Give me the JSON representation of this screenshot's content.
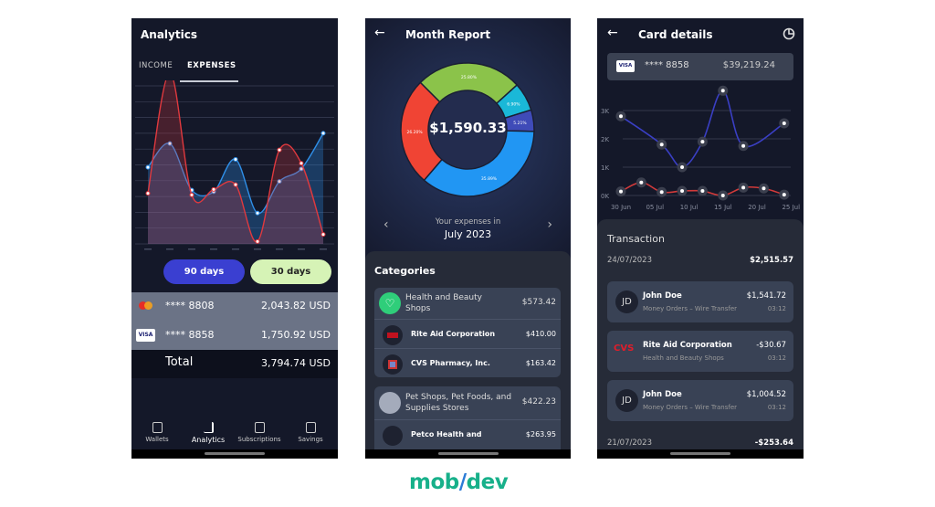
{
  "analytics": {
    "title": "Analytics",
    "tabs": [
      {
        "label": "INCOME",
        "active": false
      },
      {
        "label": "EXPENSES",
        "active": true
      }
    ],
    "chart_data": {
      "type": "area",
      "x_count": 9,
      "y_gridlines": 10,
      "grid": true,
      "series": [
        {
          "color": "#e0393e",
          "values": [
            3.2,
            10.85,
            3.1,
            3.45,
            3.75,
            0.15,
            5.95,
            5.1,
            0.6
          ]
        },
        {
          "color": "#2f8fe8",
          "values": [
            4.85,
            6.35,
            3.4,
            3.3,
            5.35,
            1.95,
            3.95,
            4.75,
            7.0
          ]
        }
      ]
    },
    "range_buttons": [
      {
        "label": "90 days",
        "color": "#3a3fd1",
        "active": true
      },
      {
        "label": "30 days",
        "color": "#d6f3b6",
        "active": false
      }
    ],
    "cards": [
      {
        "brand": "mastercard",
        "number": "**** 8808",
        "amount": "2,043.82 USD"
      },
      {
        "brand": "VISA",
        "number": "**** 8858",
        "amount": "1,750.92 USD"
      }
    ],
    "total": {
      "label": "Total",
      "amount": "3,794.74 USD"
    },
    "nav": [
      {
        "label": "Wallets",
        "icon": "wallet-icon"
      },
      {
        "label": "Analytics",
        "icon": "bar-chart-icon",
        "active": true
      },
      {
        "label": "Subscriptions",
        "icon": "calendar-icon"
      },
      {
        "label": "Savings",
        "icon": "calendar-icon"
      }
    ]
  },
  "report": {
    "title": "Month Report",
    "total": "$1,590.33",
    "chart_data": {
      "type": "pie",
      "donut": true,
      "slices": [
        {
          "label": "25.80%",
          "value": 25.8,
          "color": "#8bc34a"
        },
        {
          "label": "6.90%",
          "value": 6.9,
          "color": "#1ab8d8"
        },
        {
          "label": "5.21%",
          "value": 5.21,
          "color": "#3f4bb8"
        },
        {
          "label": "35.89%",
          "value": 35.89,
          "color": "#2196f3"
        },
        {
          "label": "26.20%",
          "value": 26.2,
          "color": "#f04434"
        }
      ]
    },
    "period_caption": "Your expenses in",
    "period": "July 2023",
    "categories_title": "Categories",
    "groups": [
      {
        "name": "Health and Beauty Shops",
        "amount": "$573.42",
        "icon": "heart-icon",
        "items": [
          {
            "name": "Rite Aid Corporation",
            "amount": "$410.00"
          },
          {
            "name": "CVS Pharmacy, Inc.",
            "amount": "$163.42"
          }
        ]
      },
      {
        "name": "Pet Shops, Pet Foods, and Supplies Stores",
        "amount": "$422.23",
        "icon": "pet-icon",
        "items": [
          {
            "name": "Petco Health and",
            "amount": "$263.95"
          }
        ]
      }
    ]
  },
  "card": {
    "title": "Card details",
    "brand": "VISA",
    "number": "**** 8858",
    "balance": "$39,219.24",
    "chart_data": {
      "type": "line",
      "ylim": [
        0,
        3.7
      ],
      "y_ticks": [
        "0K",
        "1K",
        "2K",
        "3K"
      ],
      "x_ticks": [
        "30 Jun",
        "05 Jul",
        "10 Jul",
        "15 Jul",
        "20 Jul",
        "25 Jul"
      ],
      "series": [
        {
          "color": "#3a3fc4",
          "points": [
            [
              "30 Jun",
              2.8
            ],
            [
              "06 Jul",
              1.8
            ],
            [
              "09 Jul",
              1.0
            ],
            [
              "12 Jul",
              1.9
            ],
            [
              "15 Jul",
              3.7
            ],
            [
              "18 Jul",
              1.75
            ],
            [
              "24 Jul",
              2.55
            ]
          ]
        },
        {
          "color": "#d23a3a",
          "points": [
            [
              "30 Jun",
              0.14
            ],
            [
              "03 Jul",
              0.46
            ],
            [
              "06 Jul",
              0.12
            ],
            [
              "09 Jul",
              0.16
            ],
            [
              "12 Jul",
              0.16
            ],
            [
              "15 Jul",
              0.0
            ],
            [
              "18 Jul",
              0.28
            ],
            [
              "21 Jul",
              0.25
            ],
            [
              "24 Jul",
              0.03
            ]
          ]
        }
      ]
    },
    "transactions_title": "Transaction",
    "days": [
      {
        "date": "24/07/2023",
        "total": "$2,515.57"
      },
      {
        "date": "21/07/2023",
        "total": "-$253.64"
      }
    ],
    "items": [
      {
        "avatar": "JD",
        "name": "John Doe",
        "category": "Money Orders – Wire Transfer",
        "amount": "$1,541.72",
        "time": "03:12"
      },
      {
        "avatar": "CVS",
        "name": "Rite Aid Corporation",
        "category": "Health and Beauty Shops",
        "amount": "-$30.67",
        "time": "03:12"
      },
      {
        "avatar": "JD",
        "name": "John Doe",
        "category": "Money Orders – Wire Transfer",
        "amount": "$1,004.52",
        "time": "03:12"
      }
    ]
  },
  "brand": {
    "logo": "mobidev",
    "primary": "#17b08a",
    "accent": "#2b7bd6"
  }
}
